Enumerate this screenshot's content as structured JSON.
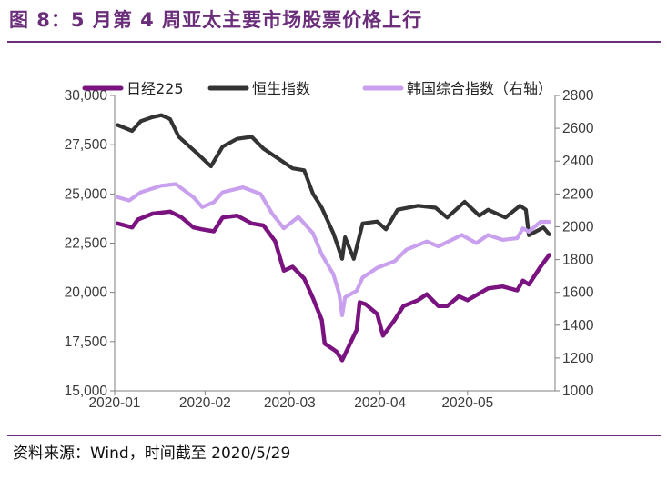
{
  "header": {
    "title": "图 8：5 月第 4 周亚太主要市场股票价格上行"
  },
  "footer": {
    "source": "资料来源：Wind，时间截至 2020/5/29"
  },
  "colors": {
    "accent": "#6b2e7a",
    "nikkei": "#7a1280",
    "hangseng": "#333333",
    "kospi": "#c9a0ee"
  },
  "chart_data": {
    "type": "line",
    "x_ticks": [
      "2020-01",
      "2020-02",
      "2020-03",
      "2020-04",
      "2020-05"
    ],
    "y_left": {
      "ticks": [
        "15,000",
        "17,500",
        "20,000",
        "22,500",
        "25,000",
        "27,500",
        "30,000"
      ],
      "ylim": [
        15000,
        30000
      ]
    },
    "y_right": {
      "ticks": [
        "1000",
        "1200",
        "1400",
        "1600",
        "1800",
        "2000",
        "2200",
        "2400",
        "2600",
        "2800"
      ],
      "ylim": [
        1000,
        2800
      ]
    },
    "grid": false,
    "legend_position": "top",
    "series": [
      {
        "name": "日经225",
        "axis": "left",
        "points": [
          [
            "2020-01-02",
            23500
          ],
          [
            "2020-01-07",
            23300
          ],
          [
            "2020-01-09",
            23700
          ],
          [
            "2020-01-14",
            24000
          ],
          [
            "2020-01-20",
            24100
          ],
          [
            "2020-01-24",
            23800
          ],
          [
            "2020-01-28",
            23300
          ],
          [
            "2020-01-31",
            23200
          ],
          [
            "2020-02-04",
            23100
          ],
          [
            "2020-02-07",
            23800
          ],
          [
            "2020-02-12",
            23900
          ],
          [
            "2020-02-17",
            23500
          ],
          [
            "2020-02-21",
            23400
          ],
          [
            "2020-02-25",
            22600
          ],
          [
            "2020-02-28",
            21100
          ],
          [
            "2020-03-02",
            21300
          ],
          [
            "2020-03-06",
            20700
          ],
          [
            "2020-03-09",
            19700
          ],
          [
            "2020-03-12",
            18600
          ],
          [
            "2020-03-13",
            17400
          ],
          [
            "2020-03-17",
            17000
          ],
          [
            "2020-03-19",
            16550
          ],
          [
            "2020-03-24",
            18100
          ],
          [
            "2020-03-25",
            19500
          ],
          [
            "2020-03-27",
            19400
          ],
          [
            "2020-03-31",
            18900
          ],
          [
            "2020-04-02",
            17800
          ],
          [
            "2020-04-06",
            18600
          ],
          [
            "2020-04-09",
            19300
          ],
          [
            "2020-04-14",
            19600
          ],
          [
            "2020-04-17",
            19900
          ],
          [
            "2020-04-21",
            19300
          ],
          [
            "2020-04-24",
            19300
          ],
          [
            "2020-04-28",
            19800
          ],
          [
            "2020-05-01",
            19600
          ],
          [
            "2020-05-08",
            20200
          ],
          [
            "2020-05-13",
            20300
          ],
          [
            "2020-05-18",
            20100
          ],
          [
            "2020-05-20",
            20600
          ],
          [
            "2020-05-22",
            20400
          ],
          [
            "2020-05-26",
            21300
          ],
          [
            "2020-05-29",
            21900
          ]
        ]
      },
      {
        "name": "恒生指数",
        "axis": "left",
        "points": [
          [
            "2020-01-02",
            28500
          ],
          [
            "2020-01-07",
            28200
          ],
          [
            "2020-01-10",
            28700
          ],
          [
            "2020-01-14",
            28900
          ],
          [
            "2020-01-17",
            29000
          ],
          [
            "2020-01-20",
            28800
          ],
          [
            "2020-01-23",
            27900
          ],
          [
            "2020-01-29",
            27100
          ],
          [
            "2020-02-03",
            26400
          ],
          [
            "2020-02-07",
            27400
          ],
          [
            "2020-02-12",
            27800
          ],
          [
            "2020-02-17",
            27900
          ],
          [
            "2020-02-21",
            27300
          ],
          [
            "2020-02-26",
            26800
          ],
          [
            "2020-03-02",
            26300
          ],
          [
            "2020-03-06",
            26200
          ],
          [
            "2020-03-09",
            25000
          ],
          [
            "2020-03-12",
            24300
          ],
          [
            "2020-03-16",
            23000
          ],
          [
            "2020-03-19",
            21700
          ],
          [
            "2020-03-20",
            22800
          ],
          [
            "2020-03-23",
            21700
          ],
          [
            "2020-03-26",
            23500
          ],
          [
            "2020-03-31",
            23600
          ],
          [
            "2020-04-03",
            23200
          ],
          [
            "2020-04-07",
            24200
          ],
          [
            "2020-04-14",
            24400
          ],
          [
            "2020-04-20",
            24300
          ],
          [
            "2020-04-24",
            23800
          ],
          [
            "2020-04-30",
            24600
          ],
          [
            "2020-05-05",
            23900
          ],
          [
            "2020-05-08",
            24200
          ],
          [
            "2020-05-14",
            23800
          ],
          [
            "2020-05-19",
            24400
          ],
          [
            "2020-05-21",
            24200
          ],
          [
            "2020-05-22",
            22900
          ],
          [
            "2020-05-27",
            23300
          ],
          [
            "2020-05-29",
            22950
          ]
        ]
      },
      {
        "name": "韩国综合指数（右轴）",
        "axis": "right",
        "points": [
          [
            "2020-01-02",
            2180
          ],
          [
            "2020-01-06",
            2160
          ],
          [
            "2020-01-10",
            2210
          ],
          [
            "2020-01-17",
            2250
          ],
          [
            "2020-01-22",
            2260
          ],
          [
            "2020-01-28",
            2180
          ],
          [
            "2020-01-31",
            2120
          ],
          [
            "2020-02-04",
            2150
          ],
          [
            "2020-02-07",
            2210
          ],
          [
            "2020-02-14",
            2240
          ],
          [
            "2020-02-20",
            2200
          ],
          [
            "2020-02-24",
            2080
          ],
          [
            "2020-02-28",
            1990
          ],
          [
            "2020-03-04",
            2060
          ],
          [
            "2020-03-09",
            1960
          ],
          [
            "2020-03-12",
            1830
          ],
          [
            "2020-03-16",
            1710
          ],
          [
            "2020-03-18",
            1590
          ],
          [
            "2020-03-19",
            1460
          ],
          [
            "2020-03-20",
            1570
          ],
          [
            "2020-03-24",
            1610
          ],
          [
            "2020-03-26",
            1690
          ],
          [
            "2020-03-31",
            1750
          ],
          [
            "2020-04-06",
            1790
          ],
          [
            "2020-04-10",
            1860
          ],
          [
            "2020-04-17",
            1910
          ],
          [
            "2020-04-21",
            1880
          ],
          [
            "2020-04-29",
            1950
          ],
          [
            "2020-05-04",
            1900
          ],
          [
            "2020-05-08",
            1950
          ],
          [
            "2020-05-13",
            1920
          ],
          [
            "2020-05-18",
            1930
          ],
          [
            "2020-05-20",
            1990
          ],
          [
            "2020-05-22",
            1970
          ],
          [
            "2020-05-26",
            2030
          ],
          [
            "2020-05-29",
            2030
          ]
        ]
      }
    ]
  }
}
